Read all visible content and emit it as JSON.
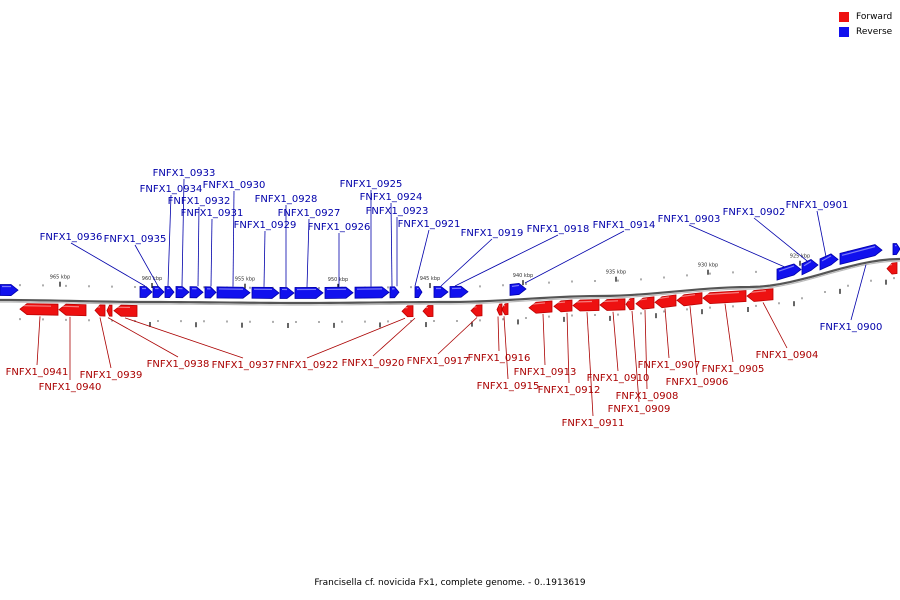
{
  "legend": {
    "forward_label": "Forward",
    "reverse_label": "Reverse",
    "forward_color": "#ee1111",
    "reverse_color": "#1111ee"
  },
  "caption": "Francisella cf. novicida Fx1, complete genome. - 0..1913619",
  "colors": {
    "forward": "#ee1111",
    "forward_edge": "#bb0000",
    "reverse": "#1111ee",
    "reverse_edge": "#0000aa",
    "axis": "#777777",
    "forward_label": "#aa0000",
    "reverse_label": "#0000aa"
  },
  "scale_labels": [
    "965 kbp",
    "960 kbp",
    "955 kbp",
    "950 kbp",
    "945 kbp",
    "940 kbp",
    "935 kbp",
    "930 kbp",
    "925 kbp"
  ],
  "reverse_genes": [
    "FNFX1_0936",
    "FNFX1_0935",
    "FNFX1_0934",
    "FNFX1_0933",
    "FNFX1_0932",
    "FNFX1_0931",
    "FNFX1_0930",
    "FNFX1_0929",
    "FNFX1_0928",
    "FNFX1_0927",
    "FNFX1_0926",
    "FNFX1_0925",
    "FNFX1_0924",
    "FNFX1_0923",
    "FNFX1_0921",
    "FNFX1_0919",
    "FNFX1_0918",
    "FNFX1_0914",
    "FNFX1_0903",
    "FNFX1_0902",
    "FNFX1_0901",
    "FNFX1_0900"
  ],
  "forward_genes": [
    "FNFX1_0941",
    "FNFX1_0940",
    "FNFX1_0939",
    "FNFX1_0938",
    "FNFX1_0937",
    "FNFX1_0922",
    "FNFX1_0920",
    "FNFX1_0917",
    "FNFX1_0916",
    "FNFX1_0915",
    "FNFX1_0913",
    "FNFX1_0912",
    "FNFX1_0911",
    "FNFX1_0910",
    "FNFX1_0909",
    "FNFX1_0908",
    "FNFX1_0907",
    "FNFX1_0906",
    "FNFX1_0905",
    "FNFX1_0904"
  ]
}
